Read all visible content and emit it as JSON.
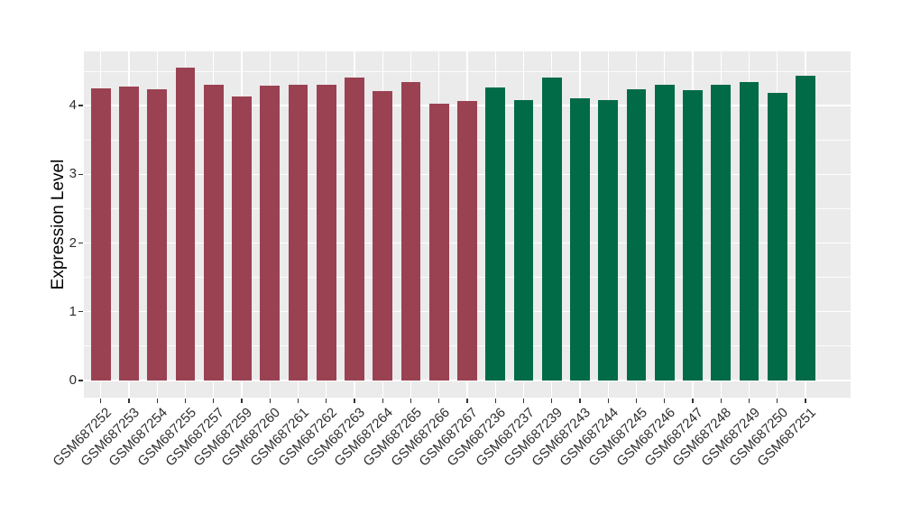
{
  "chart_data": {
    "type": "bar",
    "title": "",
    "xlabel": "",
    "ylabel": "Expression Level",
    "yticks": [
      0,
      1,
      2,
      3,
      4
    ],
    "ylim": [
      -0.25,
      4.79
    ],
    "grid": "white major and minor horizontal lines, white major vertical lines at each category, on grey panel",
    "legend": "none",
    "panel_bg": "#EBEBEB",
    "grid_color": "#FFFFFF",
    "tick_color": "#333333",
    "axis_text_color": "#2E2E2E",
    "x_label_rotation_deg": 45,
    "series": [
      {
        "name": "left-group-maroon",
        "color": "#9A4252",
        "categories": [
          "GSM687252",
          "GSM687253",
          "GSM687254",
          "GSM687255",
          "GSM687257",
          "GSM687259",
          "GSM687260",
          "GSM687261",
          "GSM687262",
          "GSM687263",
          "GSM687264",
          "GSM687265",
          "GSM687266",
          "GSM687267"
        ],
        "values": [
          4.25,
          4.28,
          4.24,
          4.56,
          4.31,
          4.14,
          4.29,
          4.31,
          4.3,
          4.41,
          4.21,
          4.35,
          4.03,
          4.07
        ]
      },
      {
        "name": "right-group-green",
        "color": "#016B48",
        "categories": [
          "GSM687236",
          "GSM687237",
          "GSM687239",
          "GSM687243",
          "GSM687244",
          "GSM687245",
          "GSM687246",
          "GSM687247",
          "GSM687248",
          "GSM687249",
          "GSM687250",
          "GSM687251"
        ],
        "values": [
          4.26,
          4.08,
          4.41,
          4.11,
          4.08,
          4.24,
          4.3,
          4.23,
          4.31,
          4.34,
          4.18,
          4.44
        ]
      }
    ]
  }
}
